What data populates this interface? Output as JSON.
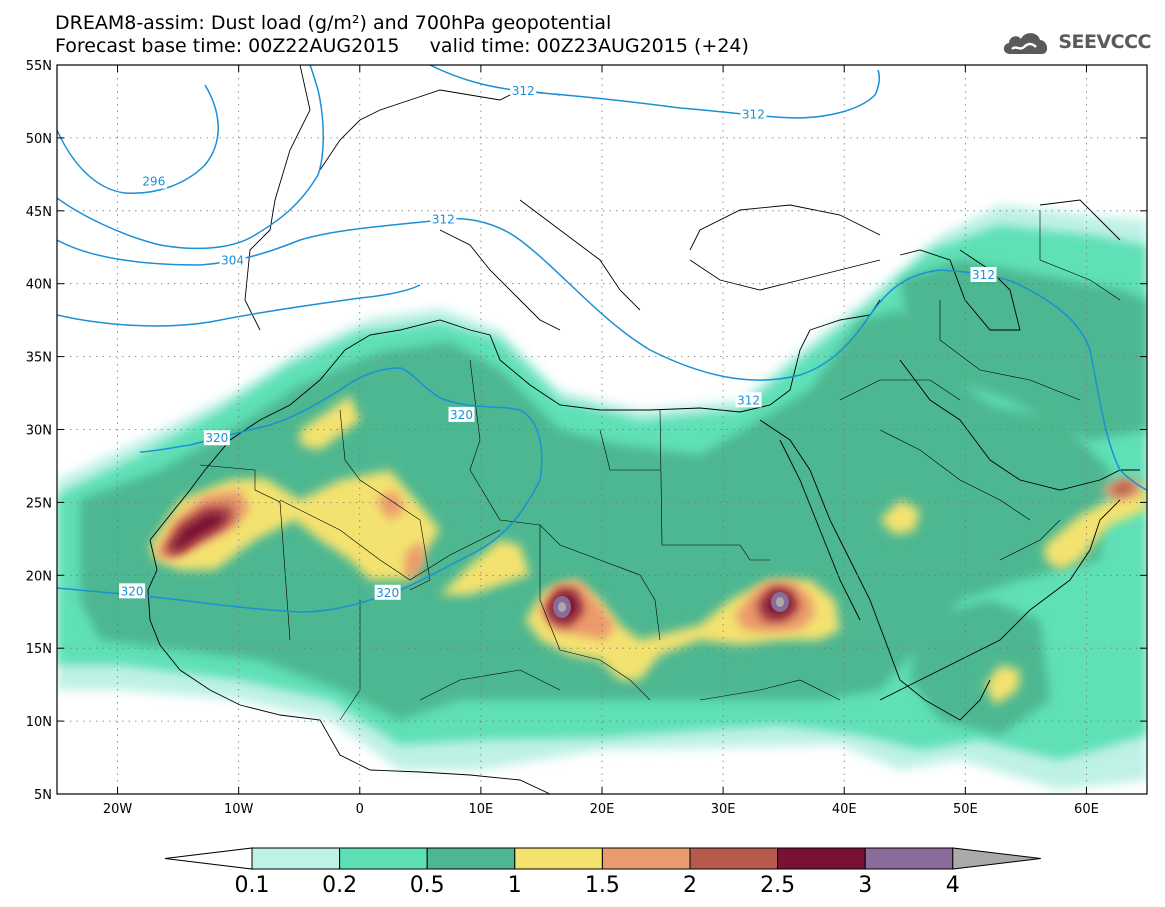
{
  "header": {
    "title_line1": "DREAM8-assim: Dust load (g/m²) and 700hPa geopotential",
    "title_line2": "Forecast base time: 00Z22AUG2015     valid time: 00Z23AUG2015 (+24)"
  },
  "logo": {
    "text": "SEEVCCC"
  },
  "map": {
    "lon_range": [
      -25,
      65
    ],
    "lat_range": [
      5,
      55
    ],
    "lon_ticks": [
      "20W",
      "10W",
      "0",
      "10E",
      "20E",
      "30E",
      "40E",
      "50E",
      "60E"
    ],
    "lat_ticks": [
      "55N",
      "50N",
      "45N",
      "40N",
      "35N",
      "30N",
      "25N",
      "20N",
      "15N",
      "10N",
      "5N"
    ],
    "contour_color": "#1a90d6",
    "contour_labels": [
      {
        "text": "296",
        "lon": -17.0,
        "lat": 47.0
      },
      {
        "text": "304",
        "lon": -10.5,
        "lat": 41.6
      },
      {
        "text": "312",
        "lon": 13.5,
        "lat": 53.2
      },
      {
        "text": "312",
        "lon": 32.5,
        "lat": 51.6
      },
      {
        "text": "312",
        "lon": 6.9,
        "lat": 44.4
      },
      {
        "text": "312",
        "lon": 51.5,
        "lat": 40.6
      },
      {
        "text": "312",
        "lon": 32.1,
        "lat": 32.0
      },
      {
        "text": "320",
        "lon": 8.4,
        "lat": 31.0
      },
      {
        "text": "320",
        "lon": -11.8,
        "lat": 29.4
      },
      {
        "text": "320",
        "lon": -18.8,
        "lat": 18.9
      },
      {
        "text": "320",
        "lon": 2.3,
        "lat": 18.8
      }
    ]
  },
  "colorbar": {
    "labels": [
      "0.1",
      "0.2",
      "0.5",
      "1",
      "1.5",
      "2",
      "2.5",
      "3",
      "4"
    ],
    "colors": [
      "#bff1e6",
      "#5ee0b6",
      "#4db791",
      "#f4e26f",
      "#eb9a6c",
      "#b65a4d",
      "#7a1132",
      "#8a6c9c",
      "#aaaaaa"
    ]
  }
}
